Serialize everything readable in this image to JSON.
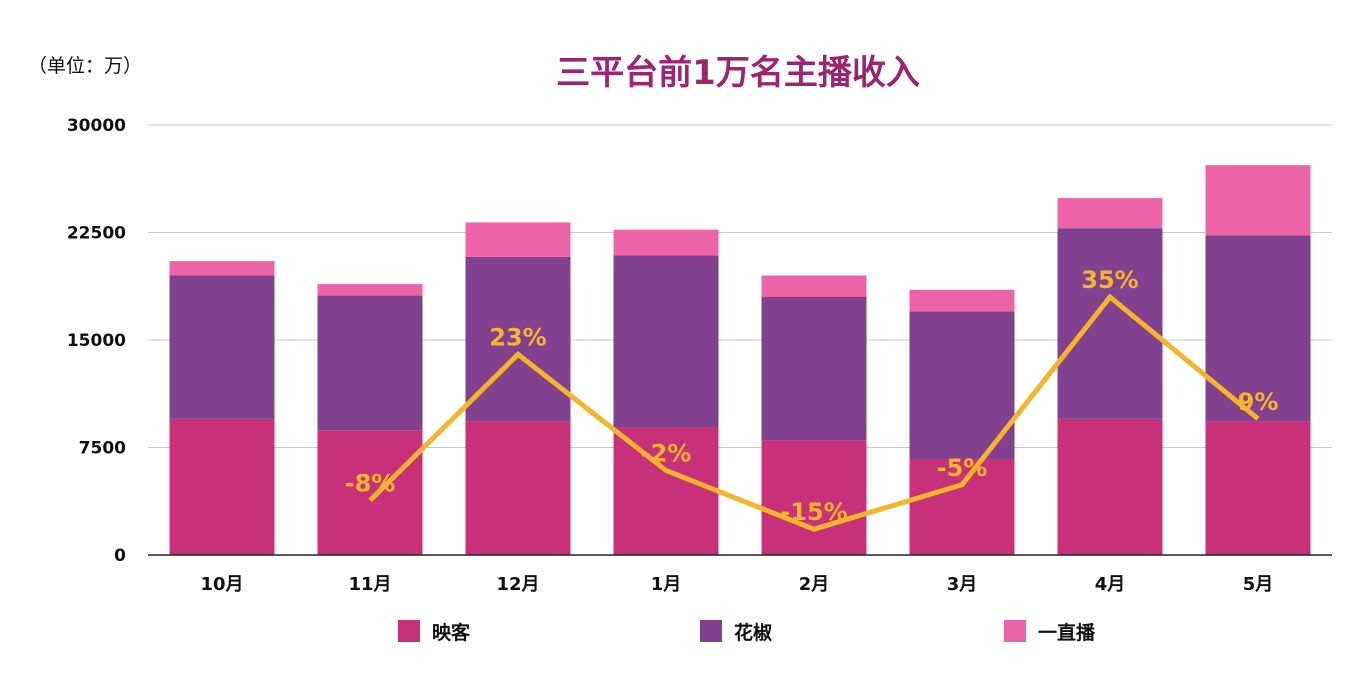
{
  "chart_data": {
    "type": "bar",
    "stacked": true,
    "title": "三平台前1万名主播收入",
    "unit_label": "（单位：万）",
    "categories": [
      "10月",
      "11月",
      "12月",
      "1月",
      "2月",
      "3月",
      "4月",
      "5月"
    ],
    "ylim": [
      0,
      30000
    ],
    "yticks": [
      "30000",
      "22500",
      "15000",
      "7500",
      "0"
    ],
    "ytick_values": [
      30000,
      22500,
      15000,
      7500,
      0
    ],
    "grid": true,
    "legend_position": "bottom",
    "series": [
      {
        "name": "映客",
        "color": "#C8307A",
        "values": [
          9500,
          8700,
          9300,
          8900,
          8000,
          6700,
          9500,
          9300
        ]
      },
      {
        "name": "花椒",
        "color": "#81418F",
        "values": [
          10000,
          9400,
          11500,
          12000,
          10000,
          10300,
          13300,
          13000
        ]
      },
      {
        "name": "一直播",
        "color": "#EC63A8",
        "values": [
          1000,
          800,
          2400,
          1800,
          1500,
          1500,
          2100,
          4900
        ]
      }
    ],
    "growth_line": {
      "color": "#F3B52A",
      "labels": [
        "",
        "-8%",
        "23%",
        "-2%",
        "-15%",
        "-5%",
        "35%",
        "9%"
      ],
      "line_points": [
        {
          "category": "11月",
          "y": 3800
        },
        {
          "category": "12月",
          "y": 14000
        },
        {
          "category": "1月",
          "y": 5900
        },
        {
          "category": "2月",
          "y": 1800
        },
        {
          "category": "3月",
          "y": 4900
        },
        {
          "category": "4月",
          "y": 18000
        },
        {
          "category": "5月",
          "y": 9500
        }
      ]
    },
    "title_color": "#9C2473"
  }
}
